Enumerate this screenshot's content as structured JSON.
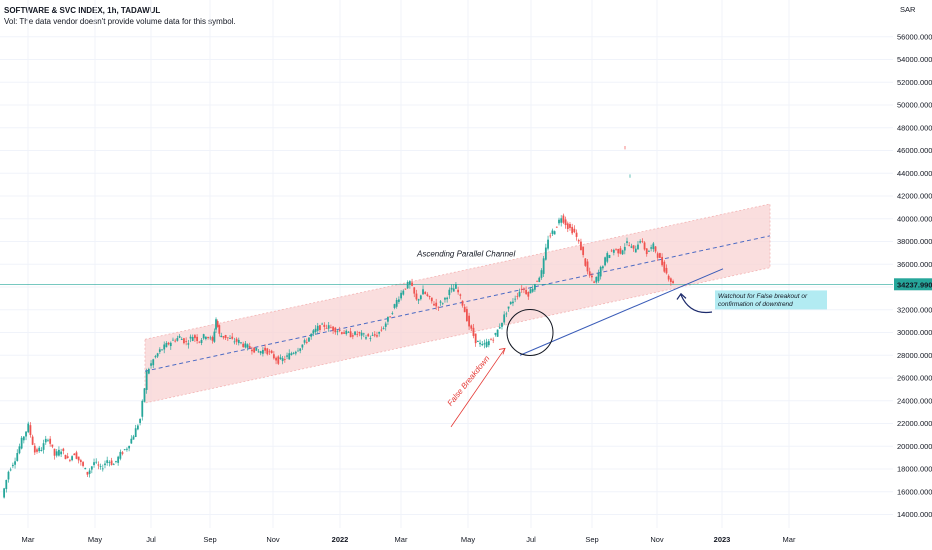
{
  "header": {
    "symbol_line": "SOFTWARE & SVC INDEX, 1h, TADAWUL",
    "volume_note": "Vol: The data vendor doesn't provide volume data for this symbol."
  },
  "chart_data": {
    "type": "candlestick",
    "currency": "SAR",
    "y_ticks": [
      14000,
      16000,
      18000,
      20000,
      22000,
      24000,
      26000,
      28000,
      30000,
      32000,
      34000,
      36000,
      38000,
      40000,
      42000,
      44000,
      46000,
      48000,
      50000,
      52000,
      54000,
      56000
    ],
    "y_tick_labels": [
      "14000.000",
      "16000.000",
      "18000.000",
      "20000.000",
      "22000.000",
      "24000.000",
      "26000.000",
      "28000.000",
      "30000.000",
      "32000.000",
      "34000.000",
      "36000.000",
      "38000.000",
      "40000.000",
      "42000.000",
      "44000.000",
      "46000.000",
      "48000.000",
      "50000.000",
      "52000.000",
      "54000.000",
      "56000.000"
    ],
    "ylim": [
      13000,
      57500
    ],
    "x_labels": [
      "Mar",
      "May",
      "Jul",
      "Sep",
      "Nov",
      "2022",
      "Mar",
      "May",
      "Jul",
      "Sep",
      "Nov",
      "2023",
      "Mar"
    ],
    "last_price": 34237.99,
    "last_price_label": "34237.990",
    "price_path": [
      [
        0,
        15500
      ],
      [
        2,
        17800
      ],
      [
        4,
        18900
      ],
      [
        6,
        20500
      ],
      [
        8,
        21800
      ],
      [
        10,
        19500
      ],
      [
        12,
        19800
      ],
      [
        14,
        20800
      ],
      [
        16,
        19200
      ],
      [
        18,
        19700
      ],
      [
        20,
        18800
      ],
      [
        22,
        19400
      ],
      [
        24,
        18500
      ],
      [
        26,
        17600
      ],
      [
        28,
        18600
      ],
      [
        30,
        18000
      ],
      [
        32,
        18800
      ],
      [
        34,
        18400
      ],
      [
        36,
        19300
      ],
      [
        38,
        19900
      ],
      [
        40,
        21000
      ],
      [
        42,
        22400
      ],
      [
        44,
        26500
      ],
      [
        46,
        27600
      ],
      [
        48,
        28400
      ],
      [
        50,
        28900
      ],
      [
        52,
        29300
      ],
      [
        54,
        29600
      ],
      [
        56,
        29100
      ],
      [
        58,
        29700
      ],
      [
        60,
        29300
      ],
      [
        62,
        29800
      ],
      [
        64,
        29200
      ],
      [
        65,
        31200
      ],
      [
        66,
        29800
      ],
      [
        68,
        29600
      ],
      [
        70,
        29300
      ],
      [
        72,
        29200
      ],
      [
        74,
        28800
      ],
      [
        76,
        28600
      ],
      [
        78,
        28300
      ],
      [
        80,
        28500
      ],
      [
        82,
        28000
      ],
      [
        84,
        27500
      ],
      [
        86,
        27700
      ],
      [
        88,
        28200
      ],
      [
        90,
        28600
      ],
      [
        92,
        29100
      ],
      [
        94,
        29800
      ],
      [
        96,
        30400
      ],
      [
        98,
        30600
      ],
      [
        100,
        30400
      ],
      [
        102,
        30200
      ],
      [
        104,
        30000
      ],
      [
        106,
        29800
      ],
      [
        108,
        29900
      ],
      [
        110,
        29700
      ],
      [
        112,
        29600
      ],
      [
        114,
        29800
      ],
      [
        116,
        30500
      ],
      [
        118,
        31500
      ],
      [
        120,
        32800
      ],
      [
        122,
        33800
      ],
      [
        124,
        34400
      ],
      [
        126,
        32800
      ],
      [
        128,
        33600
      ],
      [
        130,
        32900
      ],
      [
        132,
        32300
      ],
      [
        134,
        32700
      ],
      [
        136,
        33600
      ],
      [
        138,
        34000
      ],
      [
        140,
        32500
      ],
      [
        142,
        30600
      ],
      [
        144,
        29300
      ],
      [
        146,
        28800
      ],
      [
        148,
        29200
      ],
      [
        150,
        29800
      ],
      [
        152,
        31000
      ],
      [
        154,
        32300
      ],
      [
        156,
        33100
      ],
      [
        158,
        33900
      ],
      [
        160,
        33400
      ],
      [
        162,
        34300
      ],
      [
        164,
        35300
      ],
      [
        166,
        38300
      ],
      [
        168,
        39100
      ],
      [
        170,
        40200
      ],
      [
        172,
        39300
      ],
      [
        174,
        38800
      ],
      [
        176,
        37400
      ],
      [
        178,
        35300
      ],
      [
        180,
        34300
      ],
      [
        182,
        35600
      ],
      [
        184,
        36800
      ],
      [
        186,
        37300
      ],
      [
        188,
        37100
      ],
      [
        190,
        37900
      ],
      [
        192,
        37200
      ],
      [
        194,
        38200
      ],
      [
        196,
        37000
      ],
      [
        198,
        37600
      ],
      [
        200,
        36400
      ],
      [
        202,
        35200
      ],
      [
        204,
        34237
      ]
    ],
    "annotations": {
      "channel_label": "Ascending Parallel Channel",
      "false_breakdown_label": "False Breakdown",
      "callout_line1": "Watchout for False breakout or",
      "callout_line2": "confirmation of downtrend"
    },
    "colors": {
      "up": "#26a69a",
      "down": "#ef5350",
      "channel_fill": "#f8d3d3",
      "channel_border": "#f3b4b4",
      "midline": "#4d6bc4",
      "trendline": "#3a5cb8",
      "last_price_bg": "#26a69a",
      "callout_bg": "#b2ebf2",
      "arrow_red": "#e53935",
      "curved_arrow": "#1c2a6b"
    }
  }
}
